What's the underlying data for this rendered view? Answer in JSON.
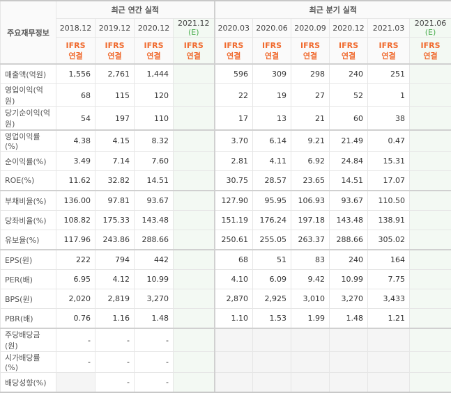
{
  "header": {
    "label": "주요재무정보",
    "annual": "최근 연간 실적",
    "quarter": "최근 분기 실적",
    "periods": [
      {
        "p": "2018.12",
        "e": ""
      },
      {
        "p": "2019.12",
        "e": ""
      },
      {
        "p": "2020.12",
        "e": ""
      },
      {
        "p": "2021.12",
        "e": "(E)"
      },
      {
        "p": "2020.03",
        "e": ""
      },
      {
        "p": "2020.06",
        "e": ""
      },
      {
        "p": "2020.09",
        "e": ""
      },
      {
        "p": "2020.12",
        "e": ""
      },
      {
        "p": "2021.03",
        "e": ""
      },
      {
        "p": "2021.06",
        "e": "(E)"
      }
    ],
    "ifrs": "IFRS",
    "consol": "연결"
  },
  "colors": {
    "accent": "#f06a2e",
    "estimate": "#4caf50"
  },
  "rows": [
    {
      "label": "매출액(억원)",
      "v": [
        "1,556",
        "2,761",
        "1,444",
        "",
        "596",
        "309",
        "298",
        "240",
        "251",
        ""
      ]
    },
    {
      "label": "영업이익(억원)",
      "v": [
        "68",
        "115",
        "120",
        "",
        "22",
        "19",
        "27",
        "52",
        "1",
        ""
      ]
    },
    {
      "label": "당기순이익(억원)",
      "v": [
        "54",
        "197",
        "110",
        "",
        "17",
        "13",
        "21",
        "60",
        "38",
        ""
      ]
    },
    {
      "label": "영업이익률(%)",
      "v": [
        "4.38",
        "4.15",
        "8.32",
        "",
        "3.70",
        "6.14",
        "9.21",
        "21.49",
        "0.47",
        ""
      ]
    },
    {
      "label": "순이익률(%)",
      "v": [
        "3.49",
        "7.14",
        "7.60",
        "",
        "2.81",
        "4.11",
        "6.92",
        "24.84",
        "15.31",
        ""
      ]
    },
    {
      "label": "ROE(%)",
      "v": [
        "11.62",
        "32.82",
        "14.51",
        "",
        "30.75",
        "28.57",
        "23.65",
        "14.51",
        "17.07",
        ""
      ]
    },
    {
      "label": "부채비율(%)",
      "v": [
        "136.00",
        "97.81",
        "93.67",
        "",
        "127.90",
        "95.95",
        "106.93",
        "93.67",
        "110.50",
        ""
      ]
    },
    {
      "label": "당좌비율(%)",
      "v": [
        "108.82",
        "175.33",
        "143.48",
        "",
        "151.19",
        "176.24",
        "197.18",
        "143.48",
        "138.91",
        ""
      ]
    },
    {
      "label": "유보율(%)",
      "v": [
        "117.96",
        "243.86",
        "288.66",
        "",
        "250.61",
        "255.05",
        "263.37",
        "288.66",
        "305.02",
        ""
      ]
    },
    {
      "label": "EPS(원)",
      "v": [
        "222",
        "794",
        "442",
        "",
        "68",
        "51",
        "83",
        "240",
        "164",
        ""
      ]
    },
    {
      "label": "PER(배)",
      "v": [
        "6.95",
        "4.12",
        "10.99",
        "",
        "4.10",
        "6.09",
        "9.42",
        "10.99",
        "7.75",
        ""
      ]
    },
    {
      "label": "BPS(원)",
      "v": [
        "2,020",
        "2,819",
        "3,270",
        "",
        "2,870",
        "2,925",
        "3,010",
        "3,270",
        "3,433",
        ""
      ]
    },
    {
      "label": "PBR(배)",
      "v": [
        "0.76",
        "1.16",
        "1.48",
        "",
        "1.10",
        "1.53",
        "1.99",
        "1.48",
        "1.21",
        ""
      ]
    },
    {
      "label": "주당배당금(원)",
      "v": [
        "-",
        "-",
        "-",
        "",
        "",
        "",
        "",
        "",
        "",
        ""
      ]
    },
    {
      "label": "시가배당률(%)",
      "v": [
        "-",
        "-",
        "-",
        "",
        "",
        "",
        "",
        "",
        "",
        ""
      ]
    },
    {
      "label": "배당성향(%)",
      "v": [
        "",
        "-",
        "-",
        "",
        "",
        "",
        "",
        "",
        "",
        ""
      ]
    }
  ]
}
